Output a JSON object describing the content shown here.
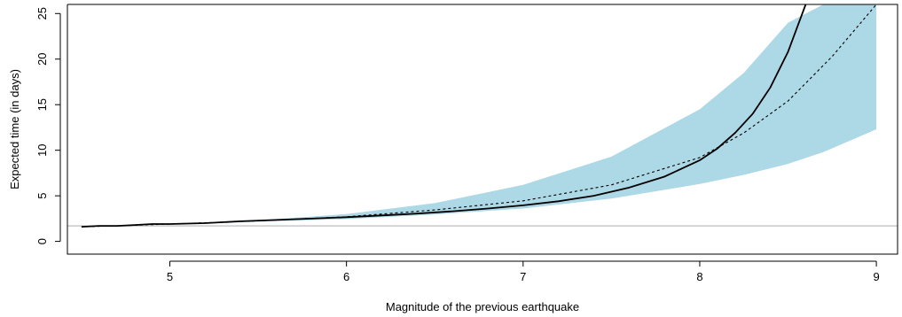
{
  "chart_data": {
    "type": "line",
    "title": "",
    "xlabel": "Magnitude of the previous earthquake",
    "ylabel": "Expected time (in days)",
    "xlim": [
      4.42,
      9.12
    ],
    "ylim": [
      -1.4,
      26.0
    ],
    "x_ticks": [
      "5",
      "6",
      "7",
      "8",
      "9"
    ],
    "y_ticks": [
      "0",
      "5",
      "10",
      "15",
      "20",
      "25"
    ],
    "grid": false,
    "legend": "none",
    "reference_line": {
      "y": 1.7,
      "color": "#c8c8c8"
    },
    "band": {
      "name": "",
      "color": "#add8e6",
      "x": [
        4.5,
        4.7,
        5.0,
        5.5,
        6.0,
        6.5,
        7.0,
        7.5,
        8.0,
        8.25,
        8.5,
        8.7,
        9.0
      ],
      "lower": [
        1.6,
        1.7,
        1.85,
        2.15,
        2.45,
        2.95,
        3.6,
        4.7,
        6.3,
        7.3,
        8.5,
        9.8,
        12.3
      ],
      "upper": [
        1.6,
        1.7,
        1.9,
        2.3,
        3.0,
        4.2,
        6.2,
        9.3,
        14.5,
        18.5,
        24.0,
        26.0,
        26.0
      ]
    },
    "series": [
      {
        "name": "",
        "style": "solid",
        "color": "#000000",
        "x": [
          4.5,
          4.6,
          4.7,
          4.8,
          4.9,
          5.0,
          5.2,
          5.4,
          5.6,
          5.8,
          6.0,
          6.2,
          6.4,
          6.6,
          6.8,
          7.0,
          7.2,
          7.4,
          7.6,
          7.8,
          8.0,
          8.1,
          8.2,
          8.3,
          8.4,
          8.5,
          8.6
        ],
        "y": [
          1.6,
          1.7,
          1.7,
          1.8,
          1.9,
          1.9,
          2.0,
          2.2,
          2.35,
          2.5,
          2.65,
          2.85,
          3.05,
          3.3,
          3.6,
          3.95,
          4.4,
          5.0,
          5.9,
          7.1,
          8.9,
          10.2,
          11.9,
          14.0,
          16.9,
          20.8,
          26.0
        ]
      },
      {
        "name": "",
        "style": "dashed",
        "color": "#000000",
        "x": [
          4.5,
          4.7,
          5.0,
          5.5,
          6.0,
          6.5,
          7.0,
          7.5,
          8.0,
          8.25,
          8.5,
          8.75,
          9.0
        ],
        "y": [
          1.6,
          1.7,
          1.9,
          2.25,
          2.7,
          3.45,
          4.45,
          6.2,
          9.2,
          11.9,
          15.4,
          20.3,
          26.0
        ]
      }
    ]
  }
}
